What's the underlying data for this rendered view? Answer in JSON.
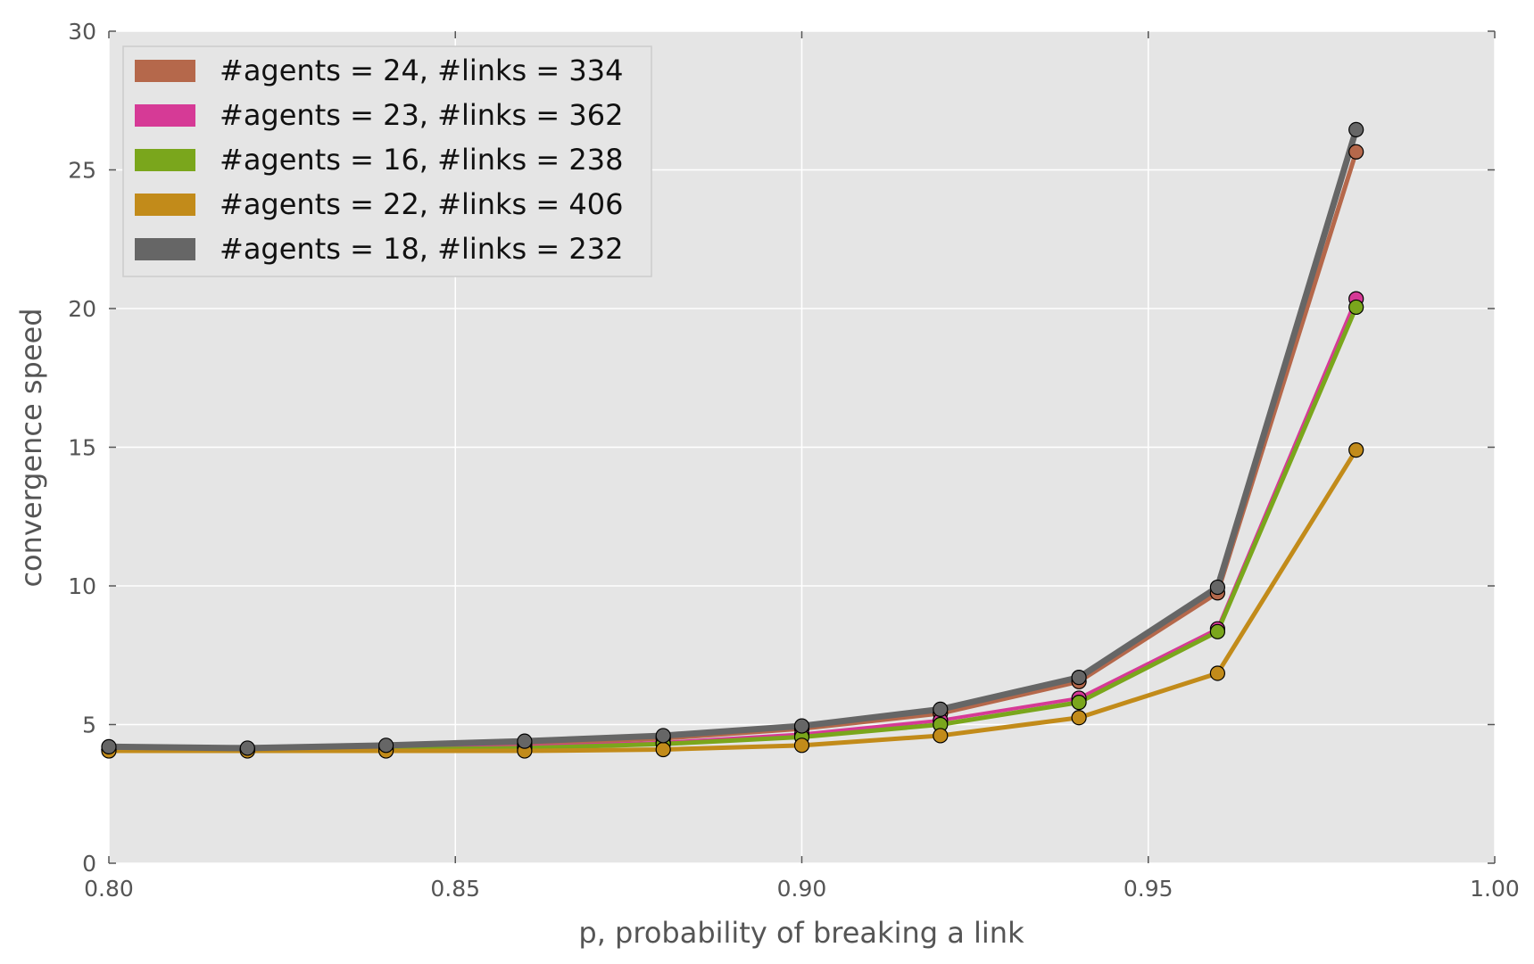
{
  "chart_data": {
    "type": "line",
    "title": "",
    "xlabel": "p, probability of breaking a link",
    "ylabel": "convergence speed",
    "xlim": [
      0.8,
      1.0
    ],
    "ylim": [
      0,
      30
    ],
    "x_ticks": [
      "0.80",
      "0.85",
      "0.90",
      "0.95",
      "1.00"
    ],
    "y_ticks": [
      "0",
      "5",
      "10",
      "15",
      "20",
      "25",
      "30"
    ],
    "grid": true,
    "legend_position": "top-left",
    "background": "#e5e5e5",
    "x": [
      0.8,
      0.82,
      0.84,
      0.86,
      0.88,
      0.9,
      0.92,
      0.94,
      0.96,
      0.98
    ],
    "series": [
      {
        "name": "#agents = 24, #links = 334",
        "color": "#b5684b",
        "values": [
          4.1,
          4.1,
          4.15,
          4.3,
          4.5,
          4.85,
          5.4,
          6.55,
          9.75,
          25.65
        ]
      },
      {
        "name": "#agents = 23, #links = 362",
        "color": "#d63a96",
        "values": [
          4.1,
          4.1,
          4.12,
          4.2,
          4.35,
          4.65,
          5.15,
          5.95,
          8.45,
          20.35
        ]
      },
      {
        "name": "#agents = 16, #links = 238",
        "color": "#7aa61c",
        "values": [
          4.1,
          4.1,
          4.1,
          4.15,
          4.3,
          4.55,
          5.0,
          5.8,
          8.35,
          20.05
        ]
      },
      {
        "name": "#agents = 22, #links = 406",
        "color": "#c28b1a",
        "values": [
          4.05,
          4.05,
          4.05,
          4.05,
          4.1,
          4.25,
          4.6,
          5.25,
          6.85,
          14.9
        ]
      },
      {
        "name": "#agents = 18, #links = 232",
        "color": "#666666",
        "values": [
          4.2,
          4.15,
          4.25,
          4.4,
          4.6,
          4.95,
          5.55,
          6.7,
          9.95,
          26.45
        ]
      }
    ]
  }
}
